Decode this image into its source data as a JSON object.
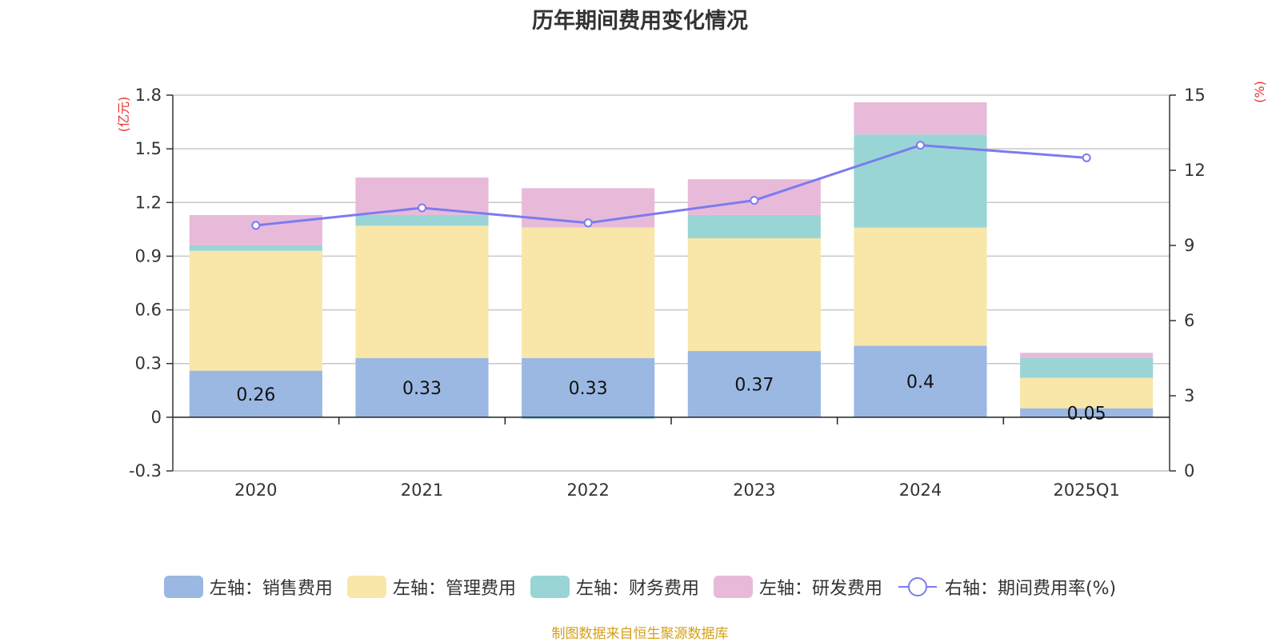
{
  "source_note": "制图数据来自恒生聚源数据库",
  "chart_data": {
    "type": "bar",
    "title": "历年期间费用变化情况",
    "left_axis_unit": "(亿元)",
    "right_axis_unit": "(%)",
    "categories": [
      "2020",
      "2021",
      "2022",
      "2023",
      "2024",
      "2025Q1"
    ],
    "left_ylim": [
      -0.3,
      1.8
    ],
    "left_ticks": [
      "1.8",
      "1.5",
      "1.2",
      "0.9",
      "0.6",
      "0.3",
      "0",
      "-0.3"
    ],
    "right_ylim": [
      0,
      15
    ],
    "right_ticks": [
      "15",
      "12",
      "9",
      "6",
      "3",
      "0"
    ],
    "grid": true,
    "legend_position": "bottom",
    "series": [
      {
        "name": "左轴：销售费用",
        "color": "#9bb8e3",
        "stacked": true,
        "axis": "left",
        "values": [
          0.26,
          0.33,
          0.33,
          0.37,
          0.4,
          0.05
        ],
        "labels": [
          "0.26",
          "0.33",
          "0.33",
          "0.37",
          "0.4",
          "0.05"
        ]
      },
      {
        "name": "左轴：管理费用",
        "color": "#f8e7a8",
        "stacked": true,
        "axis": "left",
        "values": [
          0.67,
          0.74,
          0.73,
          0.63,
          0.66,
          0.17
        ]
      },
      {
        "name": "左轴：财务费用",
        "color": "#99d5d5",
        "stacked": true,
        "axis": "left",
        "values": [
          0.03,
          0.06,
          -0.01,
          0.13,
          0.52,
          0.11
        ]
      },
      {
        "name": "左轴：研发费用",
        "color": "#e8bada",
        "stacked": true,
        "axis": "left",
        "values": [
          0.17,
          0.21,
          0.22,
          0.2,
          0.18,
          0.03
        ]
      },
      {
        "name": "右轴：期间费用率(%)",
        "type": "line",
        "color": "#7b7bf0",
        "axis": "right",
        "values": [
          9.8,
          10.5,
          9.9,
          10.8,
          13.0,
          12.5
        ]
      }
    ]
  }
}
